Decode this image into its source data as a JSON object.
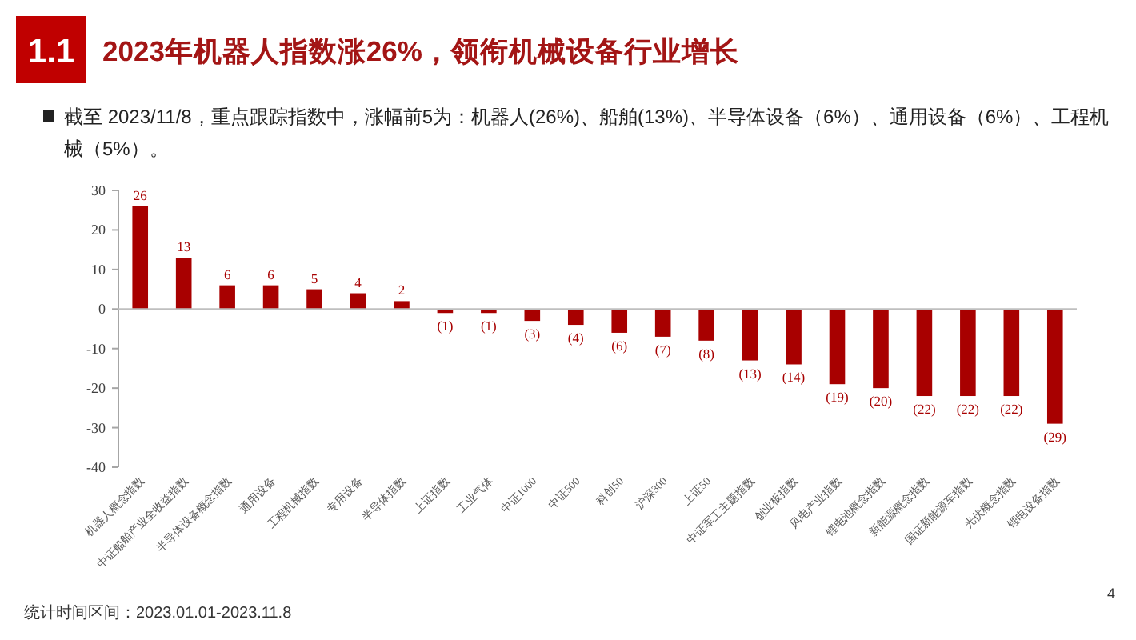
{
  "chart_data": {
    "type": "bar",
    "title": "2023年机器人指数涨26%，领衔机械设备行业增长",
    "subtitle": "截至 2023/11/8，重点跟踪指数中，涨幅前5为：机器人(26%)、船舶(13%)、半导体设备（6%）、通用设备（6%）、工程机械（5%）。",
    "categories": [
      "机器人概念指数",
      "中证船舶产业全收益指数",
      "半导体设备概念指数",
      "通用设备",
      "工程机械指数",
      "专用设备",
      "半导体指数",
      "上证指数",
      "工业气体",
      "中证1000",
      "中证500",
      "科创50",
      "沪深300",
      "上证50",
      "中证军工主题指数",
      "创业板指数",
      "风电产业指数",
      "锂电池概念指数",
      "新能源概念指数",
      "国证新能源车指数",
      "光伏概念指数",
      "锂电设备指数"
    ],
    "values": [
      26,
      13,
      6,
      6,
      5,
      4,
      2,
      -1,
      -1,
      -3,
      -4,
      -6,
      -7,
      -8,
      -13,
      -14,
      -19,
      -20,
      -22,
      -22,
      -22,
      -29
    ],
    "value_labels": [
      "26",
      "13",
      "6",
      "6",
      "5",
      "4",
      "2",
      "(1)",
      "(1)",
      "(3)",
      "(4)",
      "(6)",
      "(7)",
      "(8)",
      "(13)",
      "(14)",
      "(19)",
      "(20)",
      "(22)",
      "(22)",
      "(22)",
      "(29)"
    ],
    "color": "#a80000",
    "ylim": [
      -40,
      30
    ],
    "yticks": [
      -40,
      -30,
      -20,
      -10,
      0,
      10,
      20,
      30
    ],
    "annotations": [
      "1.1",
      "统计时间区间：2023.01.01-2023.11.8",
      "4"
    ]
  }
}
